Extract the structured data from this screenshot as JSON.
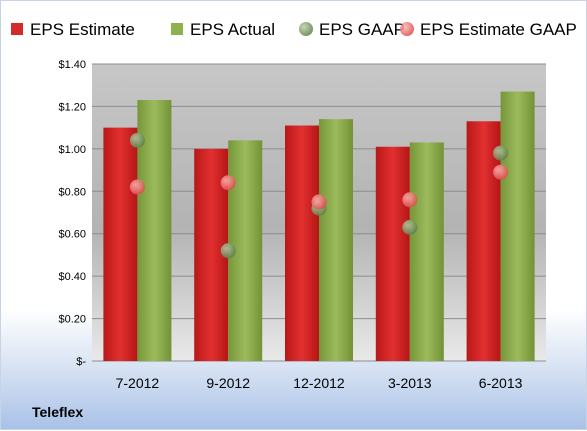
{
  "chart_data": {
    "type": "bar",
    "categories": [
      "7-2012",
      "9-2012",
      "12-2012",
      "3-2013",
      "6-2013"
    ],
    "series": [
      {
        "name": "EPS Estimate",
        "kind": "bar",
        "color": "#cc2222",
        "values": [
          1.1,
          1.0,
          1.11,
          1.01,
          1.13
        ]
      },
      {
        "name": "EPS Actual",
        "kind": "bar",
        "color": "#8aa84a",
        "values": [
          1.23,
          1.04,
          1.14,
          1.03,
          1.27
        ]
      },
      {
        "name": "EPS GAAP",
        "kind": "marker",
        "color": "#6b8c52",
        "values": [
          1.04,
          0.52,
          0.72,
          0.63,
          0.98
        ]
      },
      {
        "name": "EPS Estimate GAAP",
        "kind": "marker",
        "color": "#ee5c5c",
        "values": [
          0.82,
          0.84,
          0.75,
          0.76,
          0.89
        ]
      }
    ],
    "ylim": [
      0,
      1.4
    ],
    "yticks": [
      0,
      0.2,
      0.4,
      0.6,
      0.8,
      1.0,
      1.2,
      1.4
    ],
    "ytick_labels": [
      "$-",
      "$0.20",
      "$0.40",
      "$0.60",
      "$0.80",
      "$1.00",
      "$1.20",
      "$1.40"
    ],
    "grid": true,
    "legend_position": "top",
    "company": "Teleflex"
  }
}
